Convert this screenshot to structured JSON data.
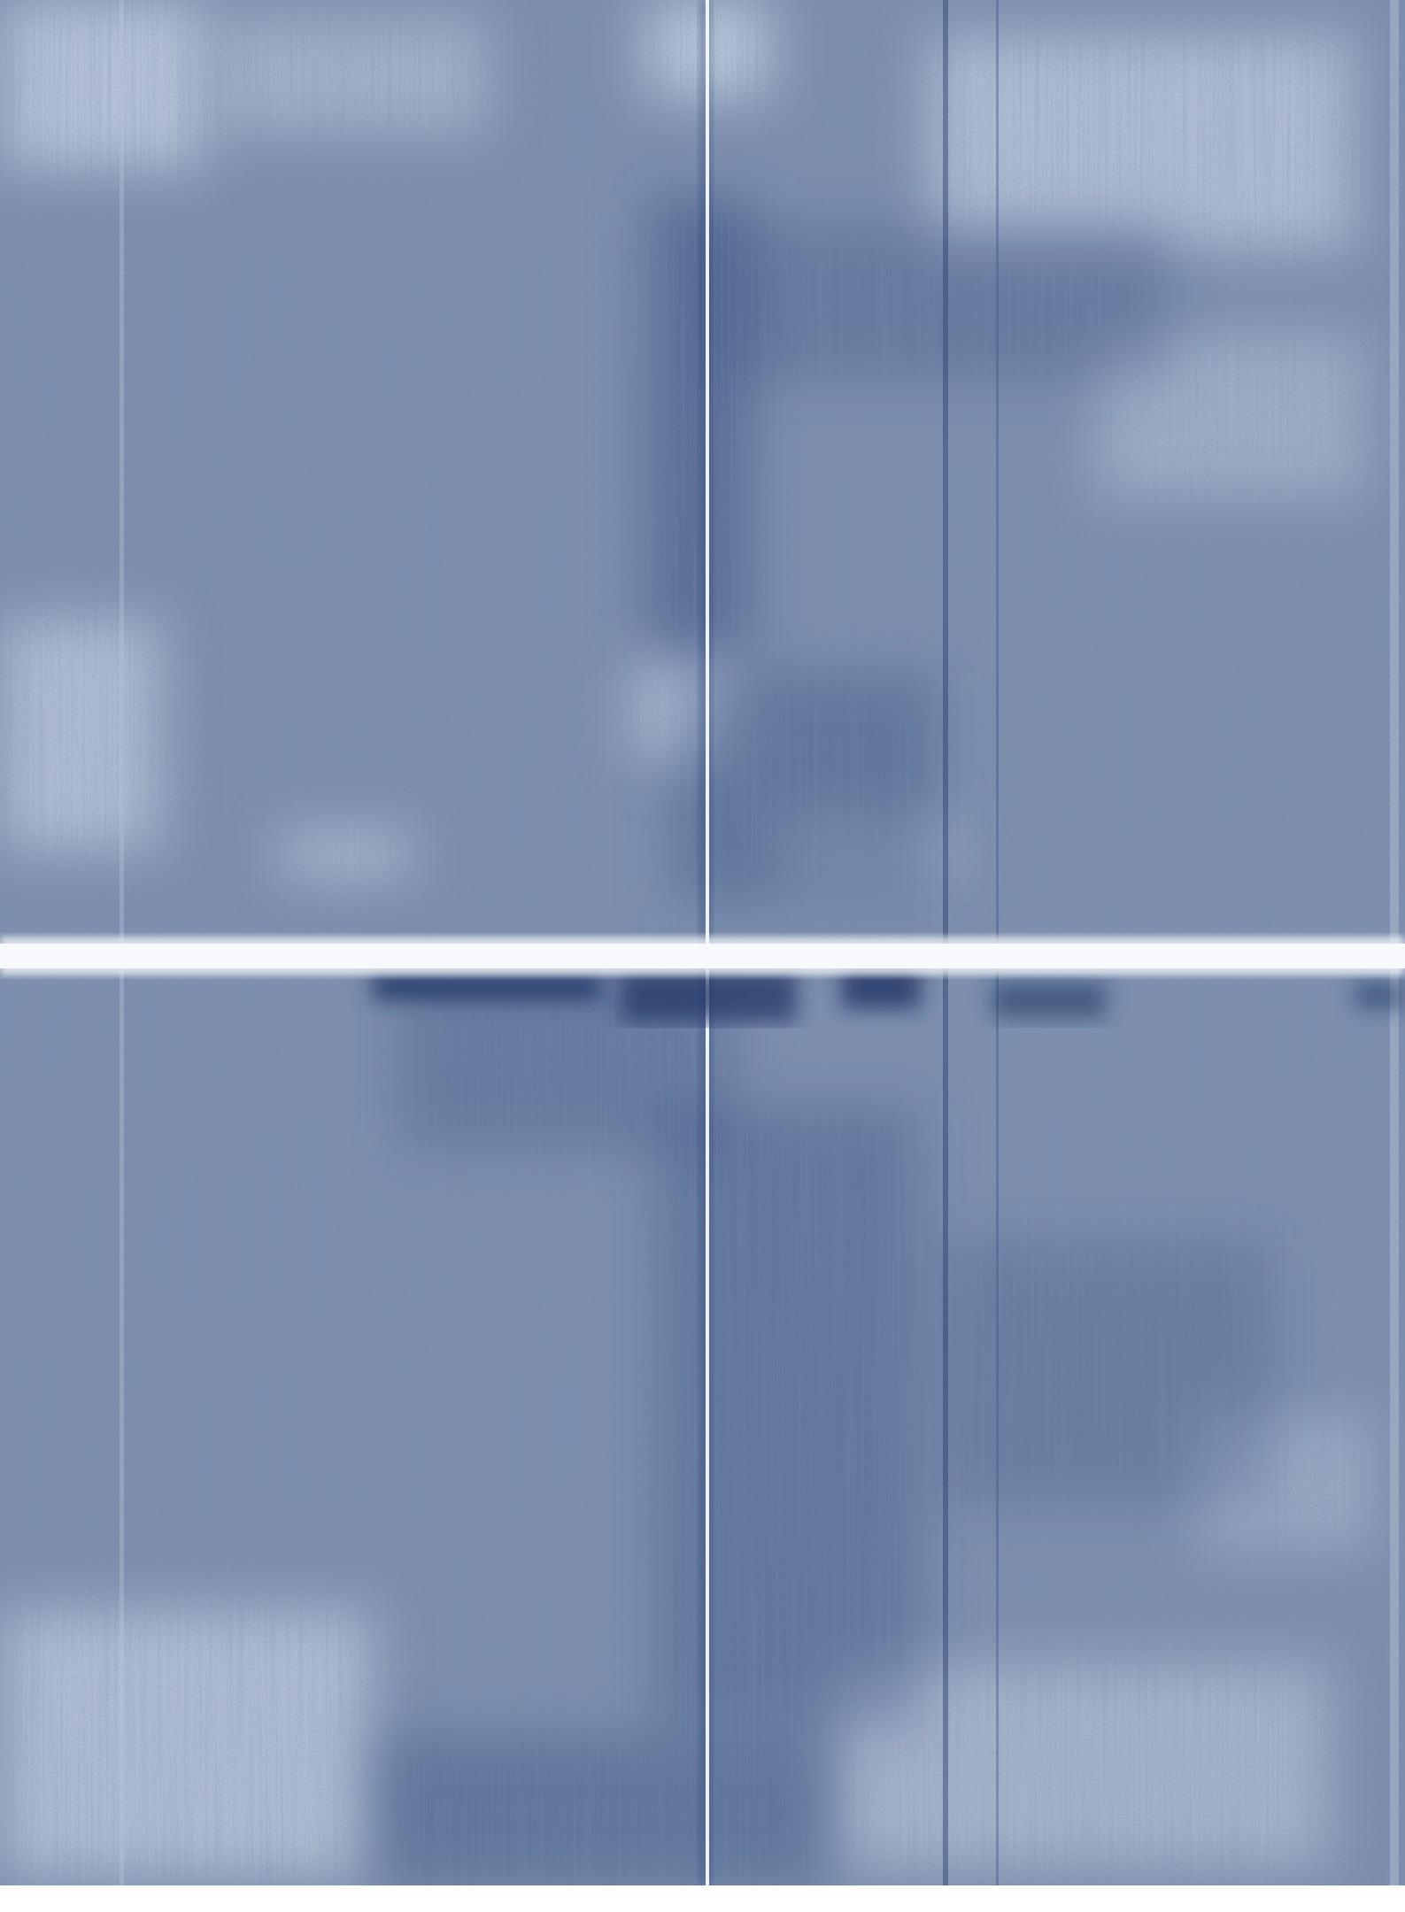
{
  "document": {
    "kind": "scanned blank page",
    "colors": {
      "paper": "#ffffff",
      "toner_base": "#7f90ad",
      "toner_light": "#c4cfe0",
      "toner_dark": "#3a5182",
      "toner_darkest": "#1f3566",
      "fold_line": "#f7f9fc"
    },
    "features": {
      "horizontal_fold": true,
      "vertical_fold": true,
      "blank_bottom_margin": true,
      "text_content": ""
    }
  }
}
